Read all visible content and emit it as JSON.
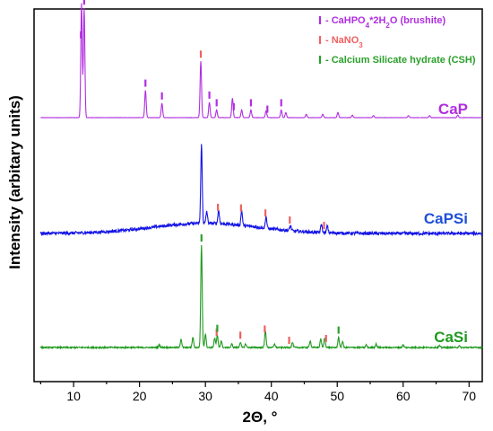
{
  "chart_data": {
    "type": "line",
    "xlabel": "2Θ, °",
    "ylabel": "Intensity (arbitary units)",
    "xlim": [
      4,
      72
    ],
    "xticks": [
      10,
      20,
      30,
      40,
      50,
      60,
      70
    ],
    "y_ticks_shown": false,
    "grid": false,
    "legend_position": "top-right",
    "legend": [
      {
        "marker_color": "#b12ee0",
        "text_main": "CaHPO",
        "sub1": "4",
        "text_mid": "*2H",
        "sub2": "2",
        "text_end": "O (brushite)"
      },
      {
        "marker_color": "#f06060",
        "text_main": "NaNO",
        "sub1": "3",
        "text_mid": "",
        "sub2": "",
        "text_end": ""
      },
      {
        "marker_color": "#2aa02a",
        "text_main": "Calcium Silicate hydrate (CSH)",
        "sub1": "",
        "text_mid": "",
        "sub2": "",
        "text_end": ""
      }
    ],
    "series": [
      {
        "name": "CaP",
        "color": "#b12ee0",
        "label_color": "#b12ee0",
        "baseline": 1.0,
        "noise": 0.008,
        "hump": null,
        "peaks": [
          [
            11.2,
            6.7
          ],
          [
            11.6,
            6.4
          ],
          [
            20.9,
            1.6
          ],
          [
            23.4,
            0.85
          ],
          [
            29.3,
            3.3
          ],
          [
            30.6,
            0.9
          ],
          [
            31.7,
            0.45
          ],
          [
            34.1,
            1.15
          ],
          [
            35.5,
            0.45
          ],
          [
            36.9,
            0.45
          ],
          [
            39.2,
            0.4
          ],
          [
            41.5,
            0.45
          ],
          [
            42.2,
            0.3
          ],
          [
            45.3,
            0.2
          ],
          [
            47.8,
            0.2
          ],
          [
            50.1,
            0.3
          ],
          [
            52.3,
            0.15
          ],
          [
            55.5,
            0.12
          ],
          [
            60.8,
            0.12
          ],
          [
            64.0,
            0.12
          ],
          [
            68.3,
            0.15
          ]
        ]
      },
      {
        "name": "CaPSi",
        "color": "#1414e6",
        "label_color": "#1f4fd6",
        "baseline": 0.0,
        "noise": 0.09,
        "hump": {
          "center": 30,
          "width": 8,
          "height": 0.6
        },
        "peaks": [
          [
            29.4,
            4.6
          ],
          [
            30.2,
            0.7
          ],
          [
            32.0,
            0.8
          ],
          [
            35.5,
            0.9
          ],
          [
            39.2,
            0.7
          ],
          [
            42.9,
            0.3
          ],
          [
            47.6,
            0.5
          ],
          [
            48.5,
            0.4
          ]
        ]
      },
      {
        "name": "CaSi",
        "color": "#1f9a1f",
        "label_color": "#1f9a1f",
        "baseline": -1.65,
        "noise": 0.04,
        "hump": null,
        "peaks": [
          [
            23.0,
            0.15
          ],
          [
            26.3,
            0.5
          ],
          [
            28.1,
            0.6
          ],
          [
            29.4,
            6.0
          ],
          [
            30.0,
            0.8
          ],
          [
            31.4,
            0.55
          ],
          [
            31.8,
            0.7
          ],
          [
            32.4,
            0.4
          ],
          [
            34.0,
            0.2
          ],
          [
            35.3,
            0.3
          ],
          [
            36.1,
            0.2
          ],
          [
            39.1,
            1.0
          ],
          [
            40.5,
            0.2
          ],
          [
            43.2,
            0.3
          ],
          [
            45.9,
            0.4
          ],
          [
            47.5,
            0.5
          ],
          [
            48.1,
            0.55
          ],
          [
            50.2,
            0.6
          ],
          [
            50.8,
            0.35
          ],
          [
            54.4,
            0.15
          ],
          [
            55.9,
            0.2
          ],
          [
            60.0,
            0.15
          ],
          [
            65.5,
            0.1
          ],
          [
            68.5,
            0.1
          ]
        ]
      }
    ],
    "markers": [
      {
        "series": "CaP",
        "type": "brushite",
        "color": "#b12ee0",
        "x": [
          11.1,
          11.6,
          20.9,
          23.4,
          30.6,
          31.7,
          34.3,
          36.9,
          39.4,
          41.5
        ]
      },
      {
        "series": "CaP",
        "type": "NaNO3",
        "color": "#f06060",
        "x": [
          29.3
        ]
      },
      {
        "series": "CaPSi",
        "type": "NaNO3",
        "color": "#f06060",
        "x": [
          31.9,
          35.4,
          39.1,
          42.8,
          48.0
        ]
      },
      {
        "series": "CaSi",
        "type": "NaNO3",
        "color": "#f06060",
        "x": [
          31.7,
          35.3,
          39.0,
          42.7,
          48.3
        ]
      },
      {
        "series": "CaSi",
        "type": "CSH",
        "color": "#2aa02a",
        "x": [
          29.4,
          31.8,
          50.2
        ]
      }
    ]
  }
}
